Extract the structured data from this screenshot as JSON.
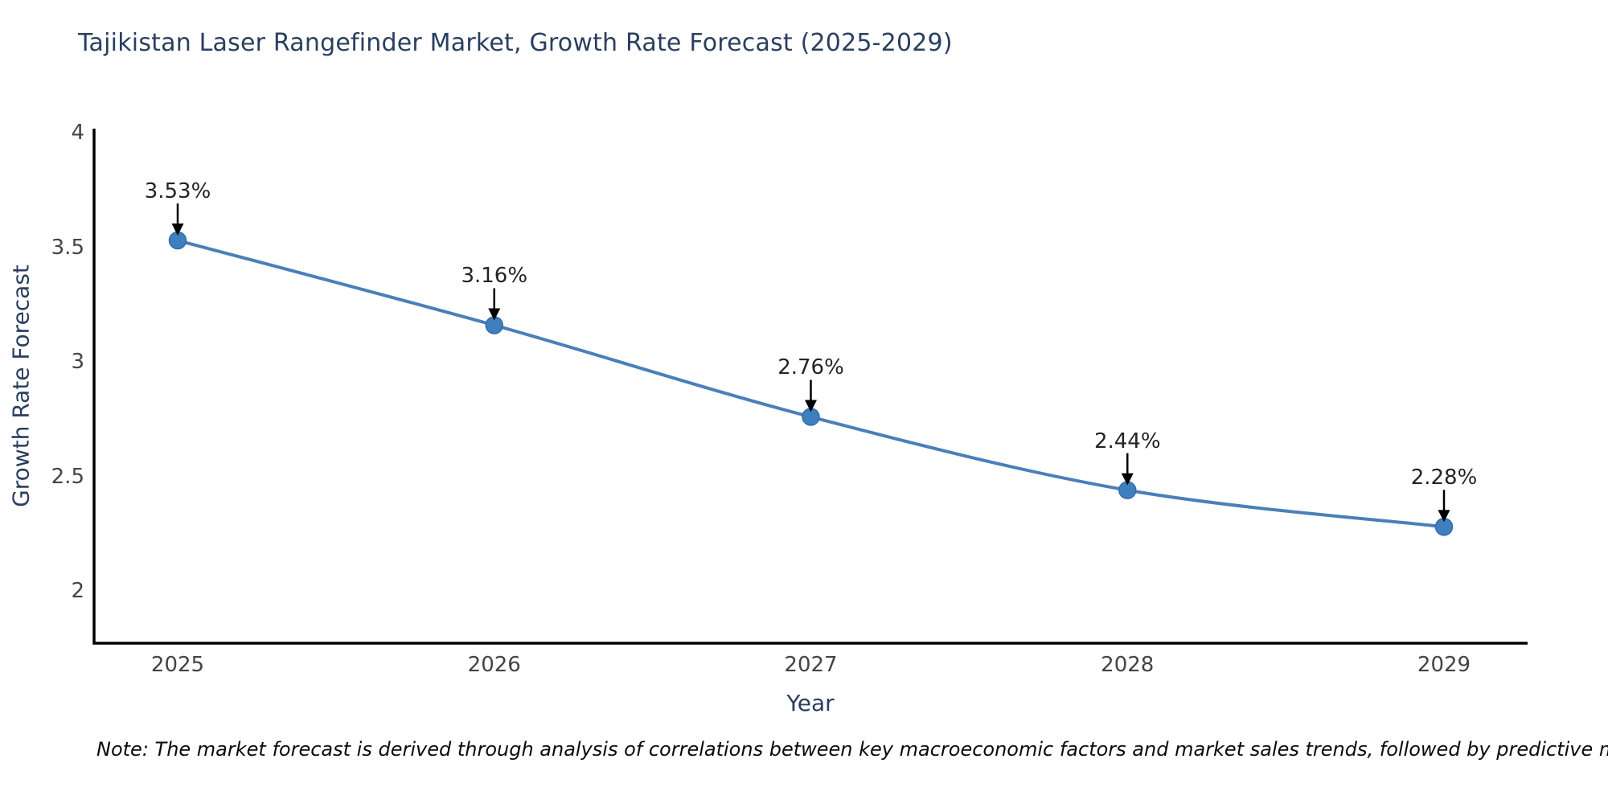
{
  "chart_data": {
    "type": "line",
    "title": "Tajikistan Laser Rangefinder Market, Growth Rate Forecast (2025-2029)",
    "xlabel": "Year",
    "ylabel": "Growth Rate Forecast",
    "categories": [
      "2025",
      "2026",
      "2027",
      "2028",
      "2029"
    ],
    "series": [
      {
        "name": "Growth Rate Forecast",
        "values": [
          3.53,
          3.16,
          2.76,
          2.44,
          2.28
        ]
      }
    ],
    "point_labels": [
      "3.53%",
      "3.16%",
      "2.76%",
      "2.44%",
      "2.28%"
    ],
    "ytick_labels": [
      "2",
      "2.5",
      "3",
      "3.5",
      "4"
    ],
    "yticks": [
      2,
      2.5,
      3,
      3.5,
      4
    ],
    "ylim": [
      1.772,
      4.018
    ],
    "grid": false,
    "legend_position": "none",
    "line_shape": "spline",
    "marker_style": "circle",
    "annotation_arrows": "down",
    "colors": {
      "line": "#4a7fba",
      "marker": "#3f7fbf",
      "marker_edge": "#336da8",
      "axis": "#000000",
      "annotation_text": "#242424",
      "annotation_arrow": "#000000",
      "title": "#2a3f5f",
      "tick": "#444444",
      "background": "#ffffff"
    }
  },
  "note": {
    "text": "Note: The market forecast is derived through analysis of correlations between key macroeconomic factors and market sales trends, followed by predictive modeling to project future sales"
  }
}
